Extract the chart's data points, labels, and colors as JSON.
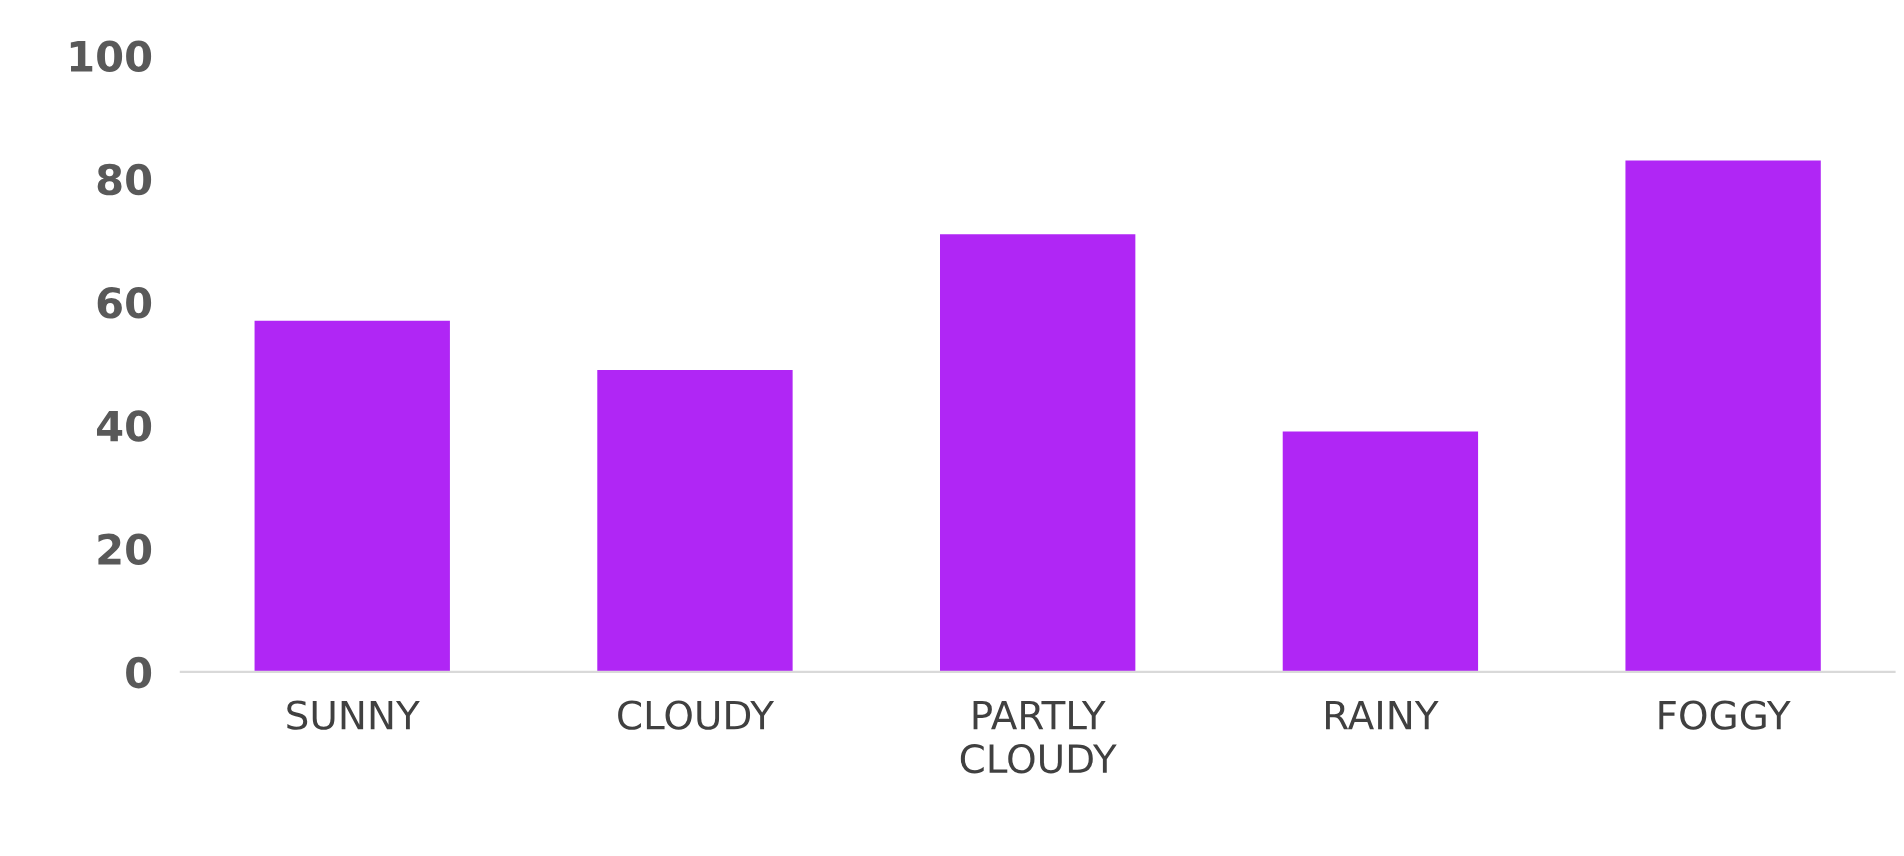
{
  "chart_data": {
    "type": "bar",
    "categories": [
      "SUNNY",
      "CLOUDY",
      "PARTLY CLOUDY",
      "RAINY",
      "FOGGY"
    ],
    "values": [
      57,
      49,
      71,
      39,
      83
    ],
    "color": "#b026f5",
    "ylim": [
      0,
      100
    ],
    "yticks": [
      0,
      20,
      40,
      60,
      80,
      100
    ],
    "grid": false
  }
}
